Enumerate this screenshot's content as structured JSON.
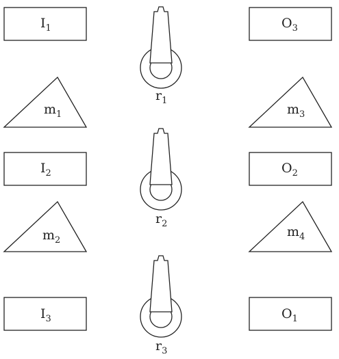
{
  "colors": {
    "stroke": "#222222",
    "fill": "#ffffff",
    "background": "#ffffff"
  },
  "boxes": [
    {
      "id": "I1",
      "base": "I",
      "sub": "1"
    },
    {
      "id": "O3",
      "base": "O",
      "sub": "3"
    },
    {
      "id": "I2",
      "base": "I",
      "sub": "2"
    },
    {
      "id": "O2",
      "base": "O",
      "sub": "2"
    },
    {
      "id": "I3",
      "base": "I",
      "sub": "3"
    },
    {
      "id": "O1",
      "base": "O",
      "sub": "1"
    }
  ],
  "machines": [
    {
      "id": "m1",
      "base": "m",
      "sub": "1"
    },
    {
      "id": "m3",
      "base": "m",
      "sub": "3"
    },
    {
      "id": "m2",
      "base": "m",
      "sub": "2"
    },
    {
      "id": "m4",
      "base": "m",
      "sub": "4"
    }
  ],
  "robots": [
    {
      "id": "r1",
      "base": "r",
      "sub": "1"
    },
    {
      "id": "r2",
      "base": "r",
      "sub": "2"
    },
    {
      "id": "r3",
      "base": "r",
      "sub": "3"
    }
  ]
}
